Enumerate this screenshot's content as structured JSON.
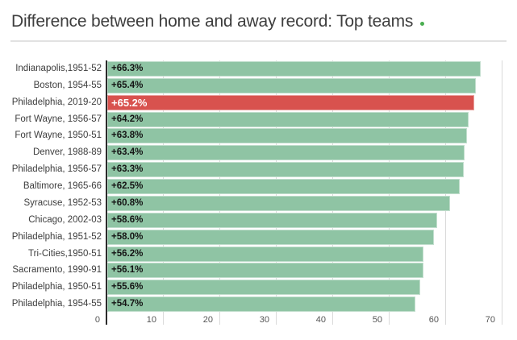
{
  "header": {
    "title": "Difference between home and away record: Top teams"
  },
  "colors": {
    "bar_green": "#8fc4a4",
    "bar_highlight_red": "#d8524e",
    "highlight_label": "#ffffff",
    "value_label": "#141414",
    "axis_line": "#2b2b2b",
    "gridline": "#dadada",
    "title_text": "#3e3e3e",
    "row_label_text": "#3d3d3d",
    "tick_label_text": "#555555",
    "divider": "#e2e2e2",
    "title_accent_dot": "#4aae50",
    "background": "#ffffff"
  },
  "chart_data": {
    "type": "bar",
    "orientation": "horizontal",
    "title": "Difference between home and away record: Top teams",
    "xlabel": "",
    "ylabel": "",
    "xlim": [
      0,
      72.7
    ],
    "x_ticks": [
      0,
      10,
      20,
      30,
      40,
      50,
      60,
      70
    ],
    "grid": "vertical",
    "legend": "none",
    "categories": [
      "Indianapolis,1951-52",
      "Boston, 1954-55",
      "Philadelphia, 2019-20",
      "Fort Wayne, 1956-57",
      "Fort Wayne, 1950-51",
      "Denver, 1988-89",
      "Philadelphia, 1956-57",
      "Baltimore, 1965-66",
      "Syracuse, 1952-53",
      "Chicago, 2002-03",
      "Philadelphia, 1951-52",
      "Tri-Cities,1950-51",
      "Sacramento, 1990-91",
      "Philadelphia, 1950-51",
      "Philadelphia, 1954-55"
    ],
    "values": [
      66.3,
      65.4,
      65.2,
      64.2,
      63.8,
      63.4,
      63.3,
      62.5,
      60.8,
      58.6,
      58.0,
      56.2,
      56.1,
      55.6,
      54.7
    ],
    "bar_labels": [
      "+66.3%",
      "+65.4%",
      "+65.2%",
      "+64.2%",
      "+63.8%",
      "+63.4%",
      "+63.3%",
      "+62.5%",
      "+60.8%",
      "+58.6%",
      "+58.0%",
      "+56.2%",
      "+56.1%",
      "+55.6%",
      "+54.7%"
    ],
    "highlighted_index": 2
  }
}
